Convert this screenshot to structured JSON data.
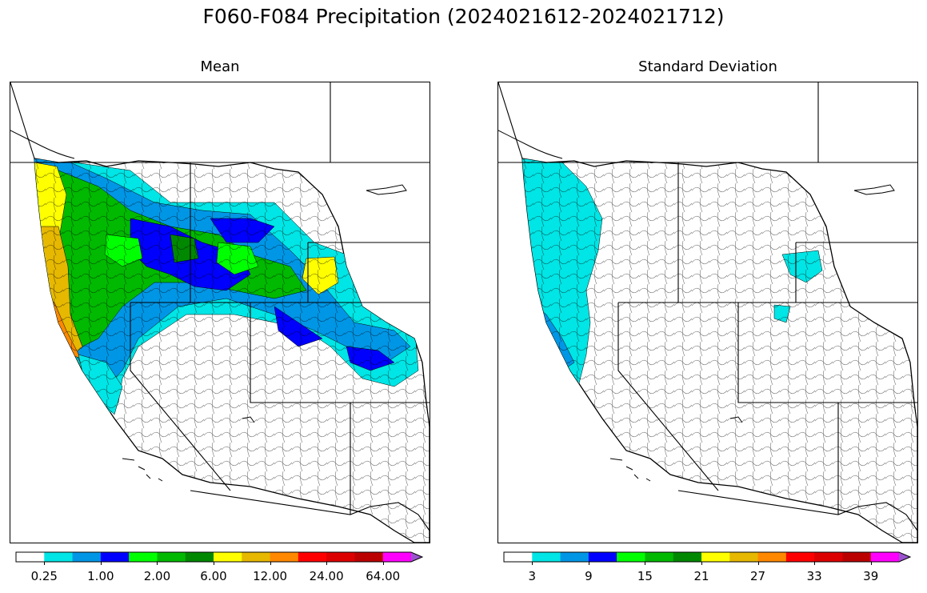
{
  "figure": {
    "title": "F060-F084 Precipitation (2024021612-2024021712)"
  },
  "panels": [
    {
      "title": "Mean",
      "colorbar": {
        "colors": [
          "#ffffff",
          "#00e5e5",
          "#0096e6",
          "#0000ff",
          "#00ff00",
          "#00b900",
          "#008800",
          "#ffff00",
          "#e6b800",
          "#ff8800",
          "#ff0000",
          "#dd0000",
          "#bb0000",
          "#ff00ff",
          "#9955cc"
        ],
        "tick_labels": [
          "0.25",
          "1.00",
          "2.00",
          "6.00",
          "12.00",
          "24.00",
          "64.00"
        ],
        "extend": "max"
      }
    },
    {
      "title": "Standard Deviation",
      "colorbar": {
        "colors": [
          "#ffffff",
          "#00e5e5",
          "#0096e6",
          "#0000ff",
          "#00ff00",
          "#00b900",
          "#008800",
          "#ffff00",
          "#e6b800",
          "#ff8800",
          "#ff0000",
          "#dd0000",
          "#bb0000",
          "#ff00ff",
          "#9955cc"
        ],
        "tick_labels": [
          "3",
          "9",
          "15",
          "21",
          "27",
          "33",
          "39"
        ],
        "extend": "max"
      }
    }
  ]
}
